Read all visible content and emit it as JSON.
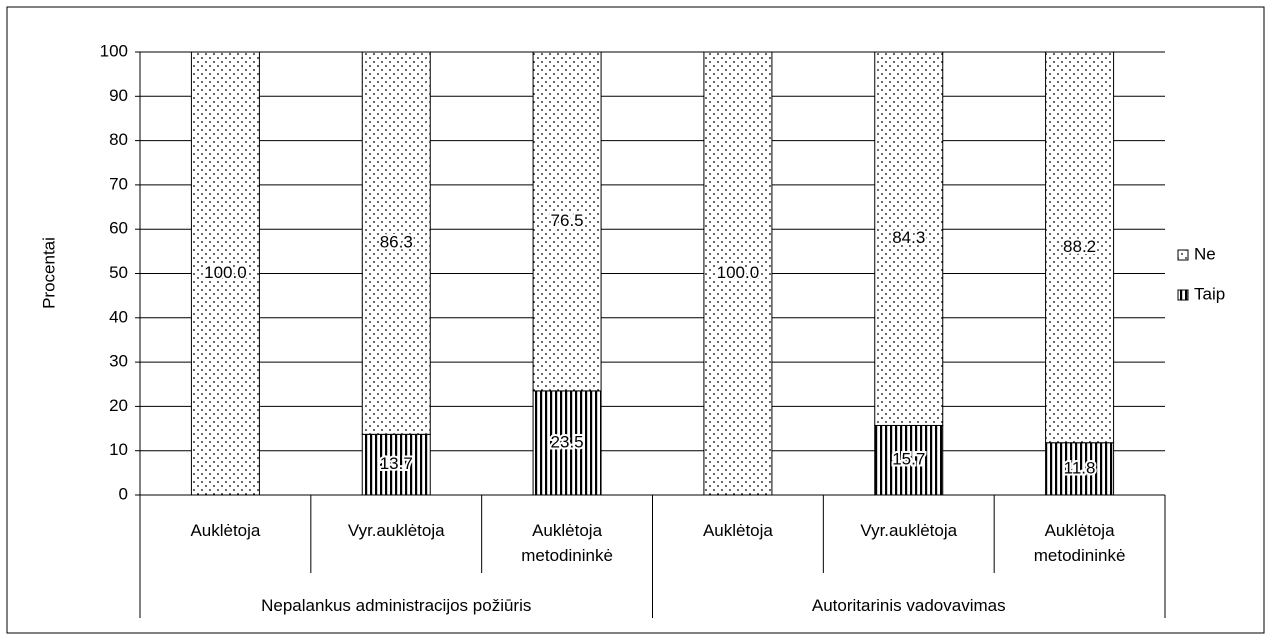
{
  "chart_data": {
    "type": "stacked-bar",
    "y_label": "Procentai",
    "categories": [
      "Auklėtoja",
      "Vyr.auklėtoja",
      "Auklėtoja metodininkė",
      "Auklėtoja",
      "Vyr.auklėtoja",
      "Auklėtoja metodininkė"
    ],
    "category_groups": [
      {
        "label": "Nepalankus administracijos požiūris",
        "size": 3
      },
      {
        "label": "Autoritarinis vadovavimas",
        "size": 3
      }
    ],
    "series": [
      {
        "name": "Taip",
        "color": "#000000",
        "pattern": "vstripes",
        "values": [
          0,
          13.7,
          23.5,
          0,
          15.7,
          11.8
        ]
      },
      {
        "name": "Ne",
        "color": "#000000",
        "pattern": "dots",
        "values": [
          100,
          86.3,
          76.5,
          100,
          84.3,
          88.2
        ],
        "value_labels": [
          "100.0",
          "86.3",
          "76.5",
          "100.0",
          "84.3",
          "88.2"
        ]
      }
    ],
    "ylim": [
      0,
      100
    ],
    "yticks": [
      0,
      10,
      20,
      30,
      40,
      50,
      60,
      70,
      80,
      90,
      100
    ],
    "grid": true,
    "legend": "right"
  }
}
